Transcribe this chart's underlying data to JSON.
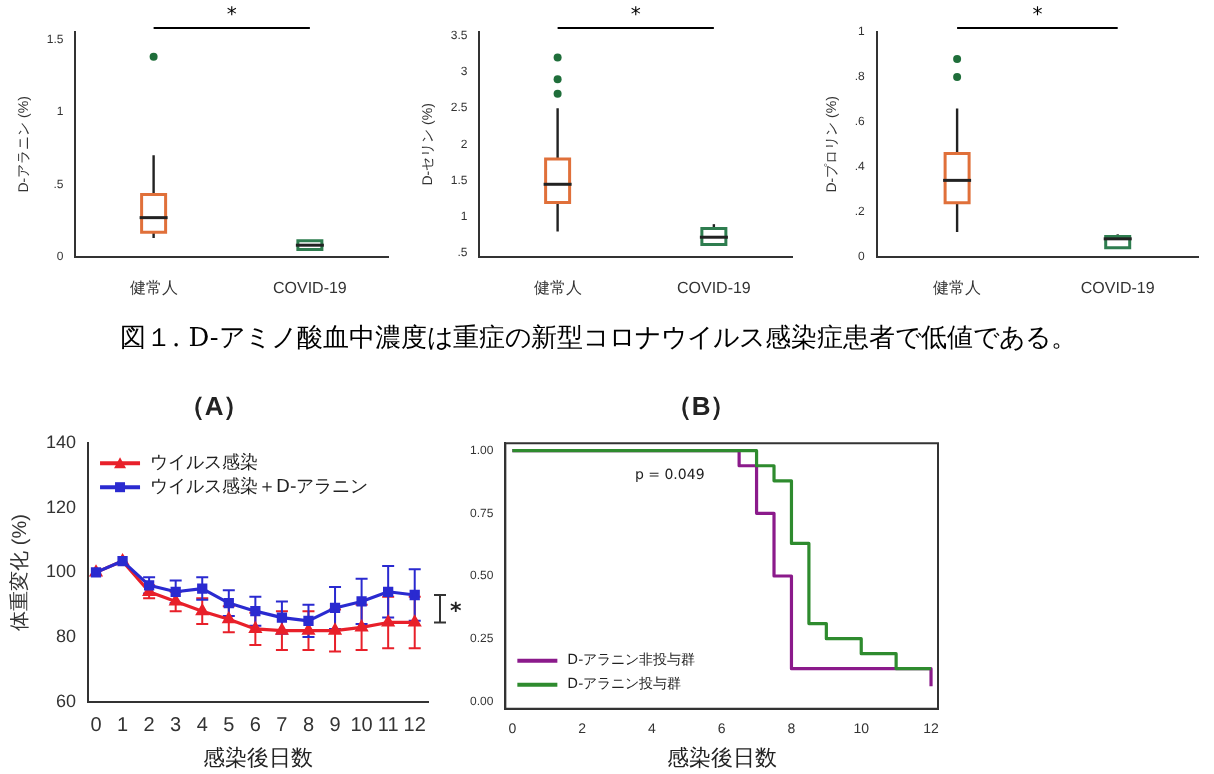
{
  "chart_data": [
    {
      "type": "box",
      "ylabel": "D-アラニン (%)",
      "categories": [
        "健常人",
        "COVID-19"
      ],
      "colors": [
        "#e0703a",
        "#2e7d4f"
      ],
      "ylim": [
        0,
        1.55
      ],
      "yticks": [
        0,
        {
          "value": 0.5,
          "label": ".5"
        },
        1,
        1.5
      ],
      "annotations": [
        "*"
      ],
      "boxes": [
        {
          "low": 0.13,
          "q1": 0.17,
          "median": 0.27,
          "q3": 0.43,
          "high": 0.7,
          "outliers": [
            1.38
          ]
        },
        {
          "low": 0.05,
          "q1": 0.05,
          "median": 0.08,
          "q3": 0.11,
          "high": 0.11
        }
      ]
    },
    {
      "type": "box",
      "ylabel": "D-セリン (%)",
      "categories": [
        "健常人",
        "COVID-19"
      ],
      "colors": [
        "#e0703a",
        "#2e7d4f"
      ],
      "ylim": [
        0.45,
        3.55
      ],
      "yticks": [
        {
          "value": 0.5,
          "label": ".5"
        },
        1,
        1.5,
        2,
        2.5,
        3,
        3.5
      ],
      "annotations": [
        "*"
      ],
      "boxes": [
        {
          "low": 0.8,
          "q1": 1.2,
          "median": 1.45,
          "q3": 1.8,
          "high": 2.5,
          "outliers": [
            2.7,
            2.9,
            3.2
          ]
        },
        {
          "low": 0.62,
          "q1": 0.62,
          "median": 0.72,
          "q3": 0.84,
          "high": 0.9
        }
      ]
    },
    {
      "type": "box",
      "ylabel": "D-プロリン (%)",
      "categories": [
        "健常人",
        "COVID-19"
      ],
      "colors": [
        "#e0703a",
        "#2e7d4f"
      ],
      "ylim": [
        0,
        1
      ],
      "yticks": [
        0,
        {
          "value": 0.2,
          "label": ".2"
        },
        {
          "value": 0.4,
          "label": ".4"
        },
        {
          "value": 0.6,
          "label": ".6"
        },
        {
          "value": 0.8,
          "label": ".8"
        },
        1
      ],
      "annotations": [
        "*",
        "図１. D-アミノ酸血中濃度は重症の新型コロナウイルス感染症患者で低値である。"
      ],
      "boxes": [
        {
          "low": 0.11,
          "q1": 0.24,
          "median": 0.34,
          "q3": 0.46,
          "high": 0.66,
          "outliers": [
            0.8,
            0.88
          ]
        },
        {
          "low": 0.04,
          "q1": 0.04,
          "median": 0.08,
          "q3": 0.09,
          "high": 0.1
        }
      ]
    },
    {
      "type": "line",
      "title": "（A）",
      "xlabel": "感染後日数",
      "ylabel": "体重変化 (%)",
      "x": [
        0,
        1,
        2,
        3,
        4,
        5,
        6,
        7,
        8,
        9,
        10,
        11,
        12
      ],
      "xlim": [
        -0.3,
        12.5
      ],
      "xticks": [
        0,
        1,
        2,
        3,
        4,
        5,
        6,
        7,
        8,
        9,
        10,
        11,
        12
      ],
      "ylim": [
        60,
        140
      ],
      "yticks": [
        60,
        80,
        100,
        120,
        140
      ],
      "legend": "top left",
      "annotations": [
        "*"
      ],
      "series": [
        {
          "name": "ウイルス感染",
          "color": "#e8202a",
          "marker": "triangle",
          "values": [
            100,
            103.5,
            94,
            91,
            88,
            85.5,
            82.5,
            82,
            82,
            82,
            83,
            84.5,
            84.5
          ],
          "errors": [
            null,
            null,
            2,
            3,
            4,
            4,
            5,
            6,
            6,
            6.5,
            7,
            8,
            8
          ]
        },
        {
          "name": "ウイルス感染＋D-アラニン",
          "color": "#2a2ad0",
          "marker": "square",
          "values": [
            100,
            103.5,
            96,
            94,
            95,
            90.5,
            88,
            86,
            85,
            89,
            91,
            94,
            93
          ],
          "errors": [
            null,
            null,
            2.5,
            3.5,
            3.5,
            4,
            4.5,
            5,
            5,
            6.5,
            7,
            8,
            8
          ]
        }
      ]
    },
    {
      "type": "step",
      "title": "（B）",
      "xlabel": "感染後日数",
      "xlim": [
        -0.2,
        12.2
      ],
      "xticks": [
        0,
        2,
        4,
        6,
        8,
        10,
        12
      ],
      "ylim": [
        -0.03,
        1.03
      ],
      "yticks": [
        {
          "value": 0,
          "label": "0.00"
        },
        {
          "value": 0.25,
          "label": "0.25"
        },
        {
          "value": 0.5,
          "label": "0.50"
        },
        {
          "value": 0.75,
          "label": "0.75"
        },
        {
          "value": 1,
          "label": "1.00"
        }
      ],
      "legend": "bottom left",
      "annotations": [
        "p = 0.049"
      ],
      "series": [
        {
          "name": "D-アラニン非投与群",
          "color": "#8b1a8b",
          "x": [
            0,
            6.5,
            7,
            7.5,
            8,
            12
          ],
          "values": [
            1,
            0.94,
            0.75,
            0.5,
            0.13,
            0.06
          ]
        },
        {
          "name": "D-アラニン投与群",
          "color": "#2e8b2e",
          "x": [
            0,
            7,
            7.5,
            8,
            8.5,
            9,
            10,
            11,
            12
          ],
          "values": [
            1,
            0.94,
            0.88,
            0.63,
            0.31,
            0.25,
            0.19,
            0.13,
            0.13
          ]
        }
      ]
    }
  ]
}
